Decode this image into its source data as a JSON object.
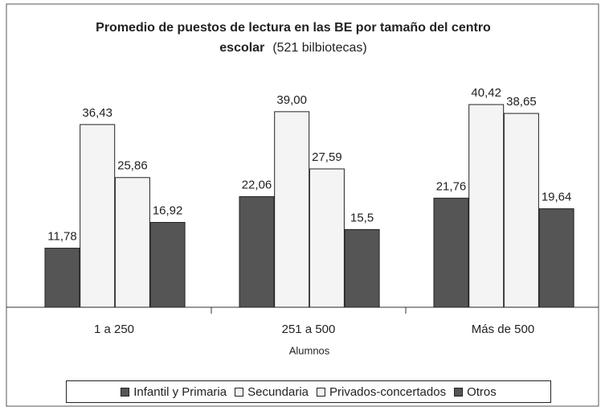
{
  "chart_data": {
    "type": "bar",
    "title": "Promedio de puestos de lectura en las BE por tamaño del centro escolar",
    "subtitle": "(521 bilbiotecas)",
    "x_label": "Alumnos",
    "categories": [
      "1 a 250",
      "251 a 500",
      "Más de 500"
    ],
    "series": [
      {
        "name": "Infantil y Primaria",
        "color": "#555555",
        "values": [
          11.78,
          22.06,
          21.76
        ],
        "value_labels": [
          "11,78",
          "22,06",
          "21,76"
        ]
      },
      {
        "name": "Secundaria",
        "color": "#f4f4f4",
        "values": [
          36.43,
          39.0,
          40.42
        ],
        "value_labels": [
          "36,43",
          "39,00",
          "40,42"
        ]
      },
      {
        "name": "Privados-concertados",
        "color": "#f4f4f4",
        "values": [
          25.86,
          27.59,
          38.65
        ],
        "value_labels": [
          "25,86",
          "27,59",
          "38,65"
        ]
      },
      {
        "name": "Otros",
        "color": "#555555",
        "values": [
          16.92,
          15.5,
          19.64
        ],
        "value_labels": [
          "16,92",
          "15,5",
          "19,64"
        ]
      }
    ],
    "legend": "bottom"
  }
}
